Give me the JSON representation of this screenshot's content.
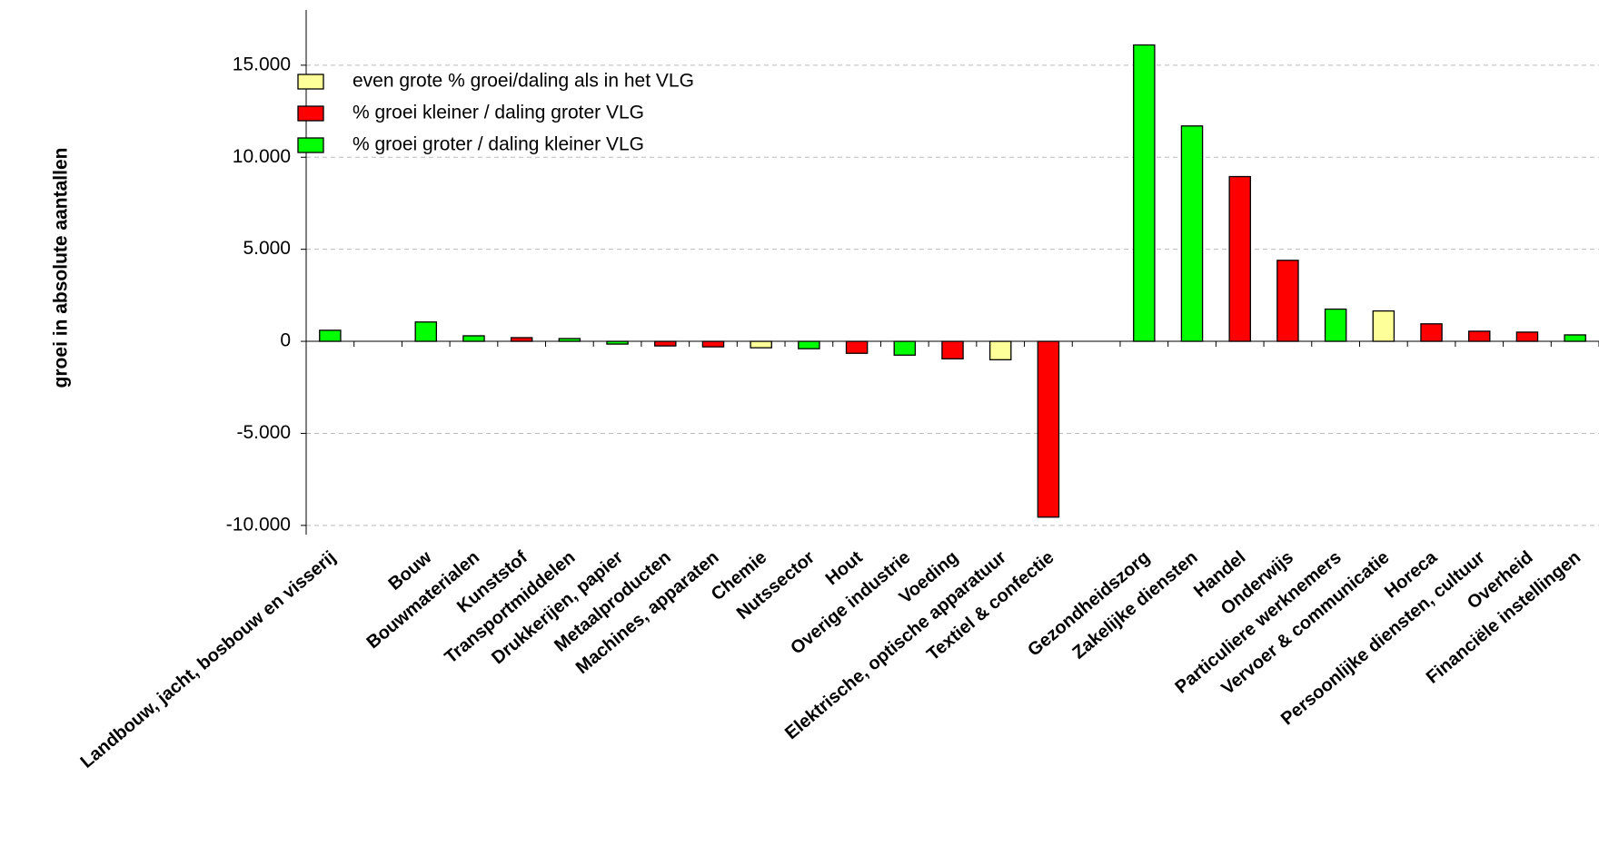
{
  "chart_data": {
    "type": "bar",
    "y_axis_label": "groei in absolute aantallen",
    "categories": [
      "Landbouw, jacht, bosbouw en visserij",
      null,
      "Bouw",
      "Bouwmaterialen",
      "Kunststof",
      "Transportmiddelen",
      "Drukkerijen, papier",
      "Metaalproducten",
      "Machines, apparaten",
      "Chemie",
      "Nutssector",
      "Hout",
      "Overige industrie",
      "Voeding",
      "Elektrische, optische apparatuur",
      "Textiel & confectie",
      null,
      "Gezondheidszorg",
      "Zakelijke diensten",
      "Handel",
      "Onderwijs",
      "Particuliere werknemers",
      "Vervoer & communicatie",
      "Horeca",
      "Persoonlijke diensten, cultuur",
      "Overheid",
      "Financiële instellingen"
    ],
    "series": [
      {
        "name": "even grote % groei/daling als in het VLG",
        "color": "#ffff99",
        "values": [
          null,
          null,
          null,
          null,
          null,
          null,
          null,
          null,
          null,
          -350,
          null,
          null,
          null,
          null,
          -1000,
          null,
          null,
          null,
          null,
          null,
          null,
          null,
          1650,
          null,
          null,
          null,
          null
        ]
      },
      {
        "name": "% groei kleiner / daling groter VLG",
        "color": "#ff0000",
        "values": [
          null,
          null,
          null,
          null,
          200,
          null,
          null,
          -250,
          -300,
          null,
          null,
          -650,
          null,
          -950,
          null,
          -9550,
          null,
          null,
          null,
          8950,
          4400,
          null,
          null,
          950,
          550,
          500,
          null
        ]
      },
      {
        "name": "% groei groter / daling kleiner VLG",
        "color": "#00ff00",
        "values": [
          600,
          null,
          1050,
          300,
          null,
          150,
          -150,
          null,
          null,
          null,
          -400,
          null,
          -750,
          null,
          null,
          null,
          null,
          16100,
          11700,
          null,
          null,
          1750,
          null,
          null,
          null,
          null,
          350
        ]
      }
    ],
    "ylim": [
      -10500,
      18000
    ],
    "yticks": [
      {
        "value": -10000,
        "label": "-10.000"
      },
      {
        "value": -5000,
        "label": "-5.000"
      },
      0,
      {
        "value": 5000,
        "label": "5.000"
      },
      {
        "value": 10000,
        "label": "10.000"
      },
      {
        "value": 15000,
        "label": "15.000"
      }
    ],
    "grid": true
  }
}
